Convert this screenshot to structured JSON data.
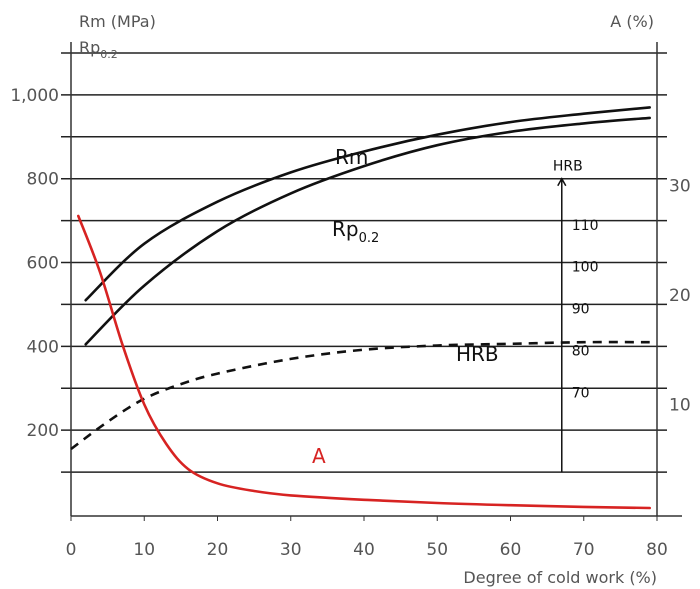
{
  "chart_data": {
    "type": "line",
    "title": "",
    "x_axis": {
      "label": "Degree of cold work (%)",
      "ticks": [
        0,
        10,
        20,
        30,
        40,
        50,
        60,
        70,
        80
      ],
      "range": [
        0,
        80
      ]
    },
    "y_left": {
      "label_line1": "Rm (MPa)",
      "label_line2_main": "Rp",
      "label_line2_sub": "0.2",
      "ticks": [
        200,
        400,
        600,
        800,
        1000
      ],
      "tick_labels": [
        "200",
        "400",
        "600",
        "800",
        "1,000"
      ],
      "range": [
        0,
        1150
      ]
    },
    "y_right": {
      "label": "A (%)",
      "ticks": [
        10,
        20,
        30
      ],
      "tick_labels": [
        "10",
        "20",
        "30"
      ],
      "range": [
        0,
        44
      ]
    },
    "hrb_scale": {
      "label": "HRB",
      "x": 67,
      "ticks": [
        {
          "label": "70",
          "y": 290
        },
        {
          "label": "80",
          "y": 390
        },
        {
          "label": "90",
          "y": 490
        },
        {
          "label": "100",
          "y": 590
        },
        {
          "label": "110",
          "y": 690
        }
      ]
    },
    "series": [
      {
        "name": "Rm",
        "color": "#111111",
        "style": "solid",
        "axis": "left",
        "points": [
          [
            2,
            510
          ],
          [
            10,
            645
          ],
          [
            20,
            745
          ],
          [
            30,
            815
          ],
          [
            40,
            865
          ],
          [
            50,
            905
          ],
          [
            60,
            935
          ],
          [
            70,
            955
          ],
          [
            79,
            970
          ]
        ]
      },
      {
        "name_main": "Rp",
        "name_sub": "0.2",
        "color": "#111111",
        "style": "solid",
        "axis": "left",
        "points": [
          [
            2,
            405
          ],
          [
            10,
            545
          ],
          [
            20,
            675
          ],
          [
            30,
            765
          ],
          [
            40,
            830
          ],
          [
            50,
            880
          ],
          [
            60,
            912
          ],
          [
            70,
            932
          ],
          [
            79,
            945
          ]
        ]
      },
      {
        "name": "HRB",
        "color": "#111111",
        "style": "dashed",
        "axis": "left",
        "points": [
          [
            0,
            155
          ],
          [
            5,
            220
          ],
          [
            10,
            275
          ],
          [
            15,
            310
          ],
          [
            20,
            335
          ],
          [
            30,
            370
          ],
          [
            40,
            392
          ],
          [
            50,
            402
          ],
          [
            60,
            406
          ],
          [
            70,
            410
          ],
          [
            79,
            410
          ]
        ]
      },
      {
        "name": "A",
        "color": "#d72322",
        "style": "solid",
        "axis": "right",
        "points": [
          [
            1,
            27.2
          ],
          [
            4,
            22
          ],
          [
            7,
            15.5
          ],
          [
            10,
            10
          ],
          [
            13,
            6.4
          ],
          [
            16,
            4.1
          ],
          [
            20,
            2.8
          ],
          [
            25,
            2.1
          ],
          [
            30,
            1.7
          ],
          [
            40,
            1.3
          ],
          [
            50,
            1.0
          ],
          [
            60,
            0.8
          ],
          [
            70,
            0.65
          ],
          [
            79,
            0.55
          ]
        ]
      }
    ],
    "grid": true
  }
}
